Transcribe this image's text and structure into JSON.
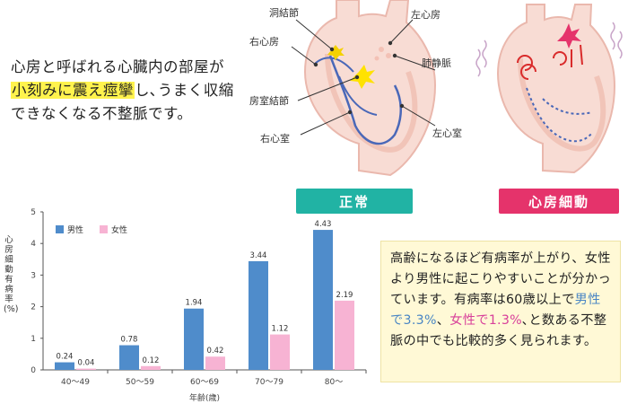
{
  "intro": {
    "text_before": "心房と呼ばれる心臓内の部屋が",
    "highlight": "小刻みに震え痙攣",
    "text_after": "し､うまく収縮できなくなる不整脈です。"
  },
  "heart_labels": {
    "sinus_node": "洞結節",
    "right_atrium": "右心房",
    "av_node": "房室結節",
    "right_ventricle": "右心室",
    "left_atrium": "左心房",
    "pulmonary_vein": "肺静脈",
    "left_ventricle": "左心室"
  },
  "tags": {
    "normal": "正常",
    "af": "心房細動"
  },
  "colors": {
    "male": "#4f8ccb",
    "female": "#f7b3d3",
    "teal": "#21b3a4",
    "pink": "#e5336b",
    "heart": "#f8dcd4",
    "heart_border": "#eab8ad"
  },
  "chart_data": {
    "type": "bar",
    "categories": [
      "40〜49",
      "50〜59",
      "60〜69",
      "70〜79",
      "80〜"
    ],
    "series": [
      {
        "name": "男性",
        "values": [
          0.24,
          0.78,
          1.94,
          3.44,
          4.43
        ]
      },
      {
        "name": "女性",
        "values": [
          0.04,
          0.12,
          0.42,
          1.12,
          2.19
        ]
      }
    ],
    "value_labels": {
      "男性": [
        "0.24",
        "0.78",
        "1.94",
        "3.44",
        "4.43"
      ],
      "女性": [
        "0.04",
        "0.12",
        "0.42",
        "1.12",
        "2.19"
      ]
    },
    "xlabel": "年齢(歳)",
    "ylabel": "心房細動有病率(%)",
    "ylim": [
      0,
      5
    ],
    "yticks": [
      "0",
      "1",
      "2",
      "3",
      "4",
      "5"
    ],
    "legend": "top-left",
    "grid": false
  },
  "legend": {
    "male": "男性",
    "female": "女性"
  },
  "info": {
    "p1": "高齢になるほど有病率が上がり、女性より男性に起こりやすいことが分かっています。有病率は60歳以上で",
    "male": "男性で3.3%",
    "p2": "、",
    "female": "女性で1.3%",
    "p3": "､と数ある不整脈の中でも比較的多く見られます。"
  }
}
